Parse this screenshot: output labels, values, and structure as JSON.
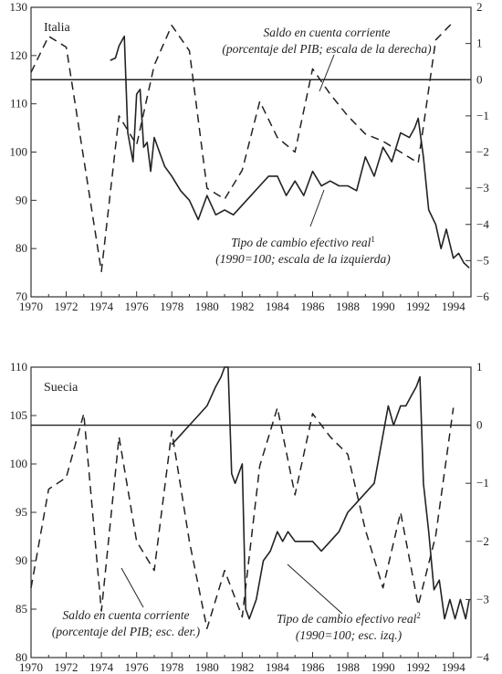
{
  "chart_data": [
    {
      "type": "line",
      "title": "Italia",
      "xlim": [
        1970,
        1995
      ],
      "ylim_left": [
        70,
        130
      ],
      "ylim_right": [
        -6,
        2
      ],
      "x_ticks": [
        1970,
        1972,
        1974,
        1976,
        1978,
        1980,
        1982,
        1984,
        1986,
        1988,
        1990,
        1992,
        1994
      ],
      "y_left_ticks": [
        70,
        80,
        90,
        100,
        110,
        120,
        130
      ],
      "y_right_ticks": [
        -6,
        -5,
        -4,
        -3,
        -2,
        -1,
        0,
        1,
        2
      ],
      "zero_line_right": 0,
      "annotations": [
        {
          "id": "current_account",
          "lines": [
            "Saldo en cuenta corriente",
            "(porcentaje del PIB; escala de la derecha)"
          ]
        },
        {
          "id": "exchange_rate",
          "lines": [
            "Tipo de cambio efectivo real",
            "(1990=100; escala de la izquierda)"
          ],
          "superscript": "1"
        }
      ],
      "series": [
        {
          "name": "Saldo en cuenta corriente",
          "axis": "right",
          "style": "dashed",
          "x": [
            1970,
            1971,
            1972,
            1974,
            1975,
            1976,
            1977,
            1978,
            1979,
            1980,
            1981,
            1982,
            1983,
            1984,
            1985,
            1986,
            1987,
            1988,
            1989,
            1990,
            1991,
            1992,
            1993,
            1994
          ],
          "y": [
            0.2,
            1.2,
            0.9,
            -5.3,
            -1.0,
            -1.8,
            0.4,
            1.5,
            0.8,
            -3.0,
            -3.3,
            -2.5,
            -0.6,
            -1.6,
            -2.0,
            0.3,
            -0.4,
            -1.0,
            -1.5,
            -1.7,
            -2.0,
            -2.3,
            1.1,
            1.6
          ]
        },
        {
          "name": "Tipo de cambio efectivo real",
          "axis": "left",
          "style": "solid",
          "x": [
            1974.5,
            1974.8,
            1975.0,
            1975.3,
            1975.5,
            1975.8,
            1976.0,
            1976.2,
            1976.4,
            1976.6,
            1976.8,
            1977.0,
            1977.3,
            1977.6,
            1978.0,
            1978.5,
            1979.0,
            1979.5,
            1980.0,
            1980.5,
            1981.0,
            1981.5,
            1982.0,
            1982.5,
            1983.0,
            1983.5,
            1984.0,
            1984.5,
            1985.0,
            1985.5,
            1986.0,
            1986.5,
            1987.0,
            1987.5,
            1988.0,
            1988.5,
            1989.0,
            1989.5,
            1990.0,
            1990.5,
            1991.0,
            1991.5,
            1991.8,
            1992.0,
            1992.3,
            1992.6,
            1993.0,
            1993.3,
            1993.6,
            1994.0,
            1994.3,
            1994.6,
            1994.9
          ],
          "y": [
            119,
            119.5,
            122,
            124,
            104,
            98,
            112,
            113,
            101,
            102,
            96,
            103,
            100,
            97,
            95,
            92,
            90,
            86,
            91,
            87,
            88,
            87,
            89,
            91,
            93,
            95,
            95,
            91,
            94,
            91,
            96,
            93,
            94,
            93,
            93,
            92,
            99,
            95,
            101,
            98,
            104,
            103,
            105,
            107,
            99,
            88,
            85,
            80,
            84,
            78,
            79,
            77,
            76
          ]
        }
      ]
    },
    {
      "type": "line",
      "title": "Suecia",
      "xlim": [
        1970,
        1995
      ],
      "ylim_left": [
        80,
        110
      ],
      "ylim_right": [
        -4,
        1
      ],
      "x_ticks": [
        1970,
        1972,
        1974,
        1976,
        1978,
        1980,
        1982,
        1984,
        1986,
        1988,
        1990,
        1992,
        1994
      ],
      "y_left_ticks": [
        80,
        85,
        90,
        95,
        100,
        105,
        110
      ],
      "y_right_ticks": [
        -4,
        -3,
        -2,
        -1,
        0,
        1
      ],
      "zero_line_right": 0,
      "annotations": [
        {
          "id": "current_account",
          "lines": [
            "Saldo en cuenta corriente",
            "(porcentaje del PIB; esc. der.)"
          ]
        },
        {
          "id": "exchange_rate",
          "lines": [
            "Tipo de cambio efectivo real",
            "(1990=100; esc. izq.)"
          ],
          "superscript": "2"
        }
      ],
      "series": [
        {
          "name": "Saldo en cuenta corriente",
          "axis": "right",
          "style": "dashed",
          "x": [
            1970,
            1971,
            1972,
            1973,
            1974,
            1975,
            1976,
            1977,
            1978,
            1979,
            1980,
            1981,
            1982,
            1983,
            1984,
            1985,
            1986,
            1987,
            1988,
            1989,
            1990,
            1991,
            1992,
            1993,
            1994
          ],
          "y": [
            -2.8,
            -1.1,
            -0.9,
            0.2,
            -3.2,
            -0.2,
            -2.0,
            -2.5,
            -0.1,
            -2.0,
            -3.5,
            -2.5,
            -3.3,
            -0.7,
            0.3,
            -1.2,
            0.2,
            -0.2,
            -0.5,
            -1.8,
            -2.8,
            -1.5,
            -3.1,
            -1.9,
            0.3
          ]
        },
        {
          "name": "Tipo de cambio efectivo real",
          "axis": "left",
          "style": "solid",
          "x": [
            1978.0,
            1978.5,
            1979.0,
            1979.5,
            1980.0,
            1980.5,
            1980.8,
            1981.0,
            1981.2,
            1981.4,
            1981.6,
            1981.8,
            1982.0,
            1982.2,
            1982.4,
            1982.8,
            1983.2,
            1983.6,
            1984.0,
            1984.3,
            1984.6,
            1985.0,
            1985.5,
            1986.0,
            1986.5,
            1987.0,
            1987.5,
            1988.0,
            1988.5,
            1989.0,
            1989.5,
            1990.0,
            1990.3,
            1990.6,
            1991.0,
            1991.3,
            1991.6,
            1991.9,
            1992.1,
            1992.3,
            1992.6,
            1992.9,
            1993.2,
            1993.5,
            1993.8,
            1994.1,
            1994.4,
            1994.7,
            1994.9
          ],
          "y": [
            102,
            103,
            104,
            105,
            106,
            108,
            109,
            110,
            110,
            99,
            98,
            99,
            100,
            85,
            84,
            86,
            90,
            91,
            93,
            92,
            93,
            92,
            92,
            92,
            91,
            92,
            93,
            95,
            96,
            97,
            98,
            103,
            106,
            104,
            106,
            106,
            107,
            108,
            109,
            98,
            93,
            87,
            88,
            84,
            86,
            84,
            86,
            84,
            86
          ]
        }
      ]
    }
  ]
}
